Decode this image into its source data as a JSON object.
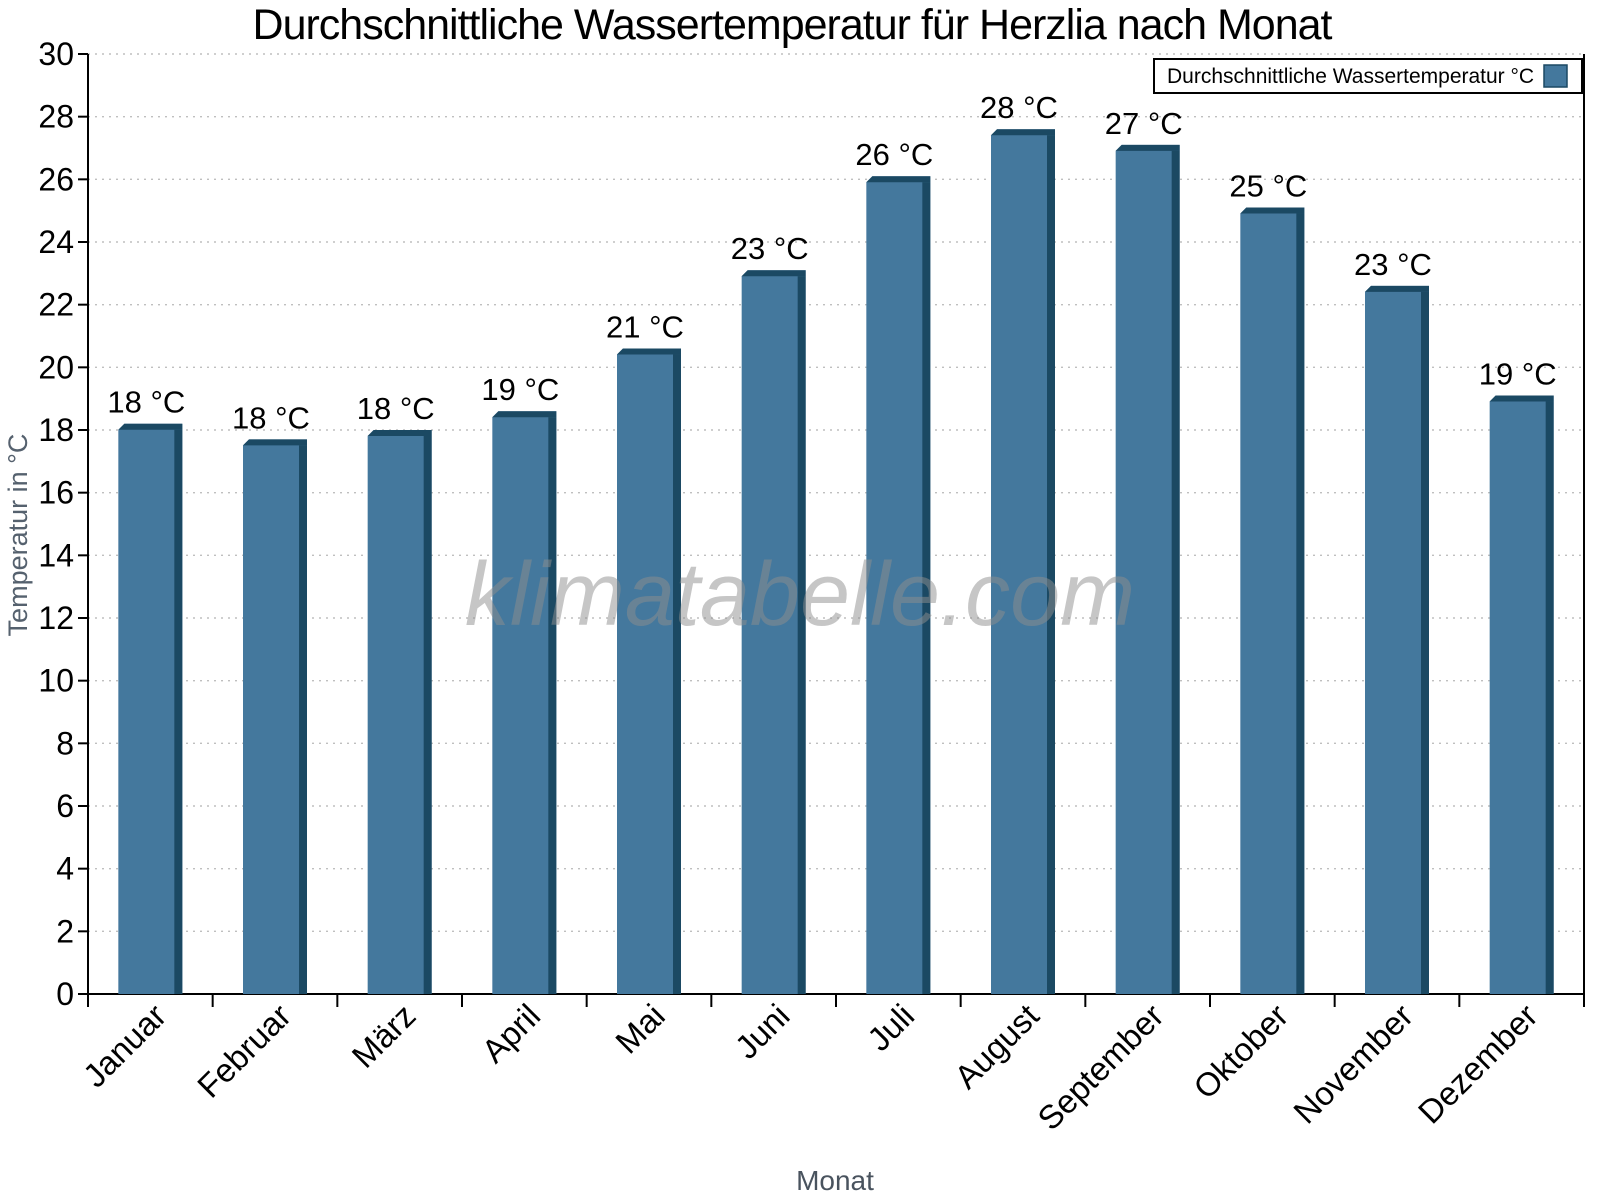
{
  "chart_data": {
    "type": "bar",
    "title": "Durchschnittliche Wassertemperatur für Herzlia nach Monat",
    "xlabel": "Monat",
    "ylabel": "Temperatur in °C",
    "watermark": "klimatabelle.com",
    "legend": {
      "label": "Durchschnittliche Wassertemperatur °C",
      "position": "top-right"
    },
    "categories": [
      "Januar",
      "Februar",
      "März",
      "April",
      "Mai",
      "Juni",
      "Juli",
      "August",
      "September",
      "Oktober",
      "November",
      "Dezember"
    ],
    "values": [
      18.2,
      17.7,
      18.0,
      18.6,
      20.6,
      23.1,
      26.1,
      27.6,
      27.1,
      25.1,
      22.6,
      19.1
    ],
    "bar_labels": [
      "18 °C",
      "18 °C",
      "18 °C",
      "19 °C",
      "21 °C",
      "23 °C",
      "26 °C",
      "28 °C",
      "27 °C",
      "25 °C",
      "23 °C",
      "19 °C"
    ],
    "ylim": [
      0,
      30
    ],
    "yticks": [
      0,
      2,
      4,
      6,
      8,
      10,
      12,
      14,
      16,
      18,
      20,
      22,
      24,
      26,
      28,
      30
    ],
    "grid": {
      "horizontal": true,
      "style": "dotted"
    },
    "colors": {
      "bar": "#44789D",
      "bar_edge": "#1B4963",
      "grid": "#BFBFBF",
      "axis": "#000000",
      "title": "#000000",
      "axis_title": "#55616E",
      "watermark": "#8F8F8F"
    }
  }
}
